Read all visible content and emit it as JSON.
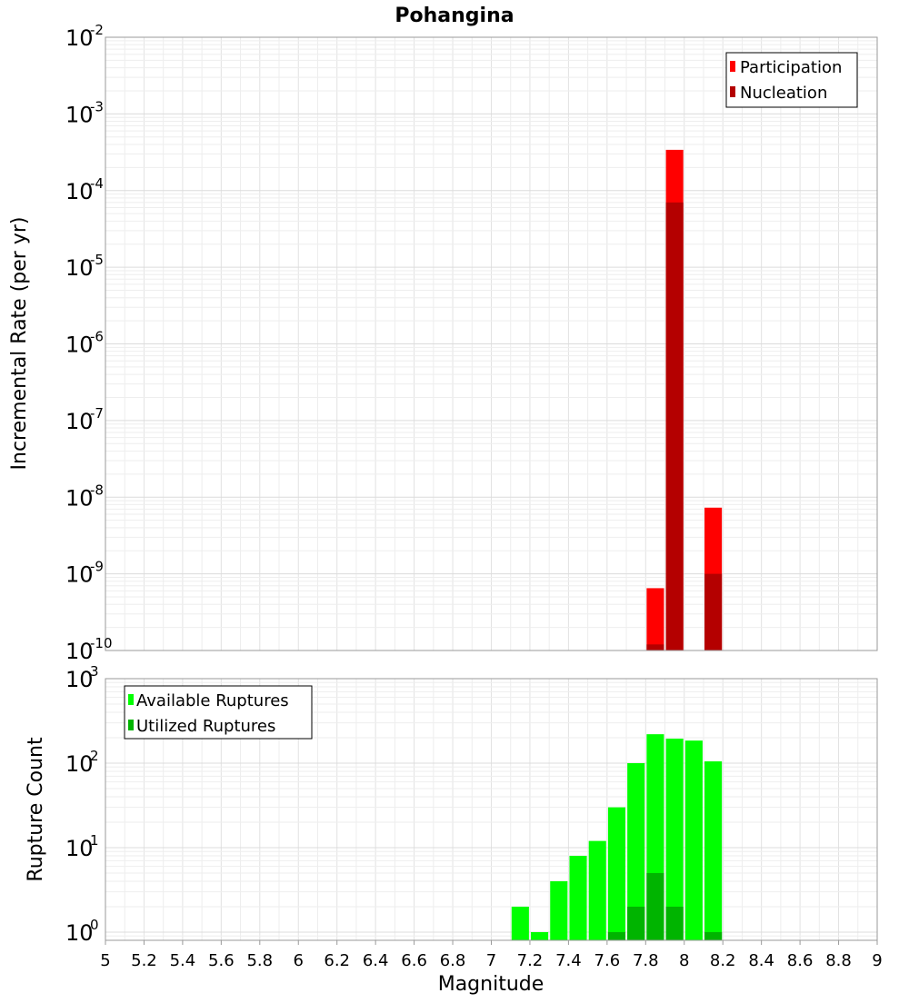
{
  "chart_data": [
    {
      "type": "bar",
      "title": "Pohangina",
      "xlabel": "",
      "ylabel": "Incremental Rate (per yr)",
      "y_scale": "log",
      "ylim": [
        1e-10,
        0.01
      ],
      "xlim": [
        5,
        9
      ],
      "y_tick_exponents": [
        "-10",
        "-9",
        "-8",
        "-7",
        "-6",
        "-5",
        "-4",
        "-3",
        "-2"
      ],
      "y_tick_base": "10",
      "legend": {
        "position": "top-right",
        "entries": [
          "Participation",
          "Nucleation"
        ]
      },
      "grid": true,
      "bar_width": 0.09,
      "series": [
        {
          "name": "Participation",
          "color": "#ff0000",
          "x": [
            7.85,
            7.95,
            8.15
          ],
          "values": [
            6.5e-10,
            0.00034,
            7.3e-09
          ]
        },
        {
          "name": "Nucleation",
          "color": "#b40000",
          "x": [
            7.85,
            7.95,
            8.15
          ],
          "values": [
            1.2e-10,
            7e-05,
            1e-09
          ]
        }
      ]
    },
    {
      "type": "bar",
      "title": "",
      "xlabel": "Magnitude",
      "ylabel": "Rupture Count",
      "y_scale": "log",
      "ylim": [
        0.8,
        1000
      ],
      "xlim": [
        5,
        9
      ],
      "x_ticks": [
        "5",
        "5.2",
        "5.4",
        "5.6",
        "5.8",
        "6",
        "6.2",
        "6.4",
        "6.6",
        "6.8",
        "7",
        "7.2",
        "7.4",
        "7.6",
        "7.8",
        "8",
        "8.2",
        "8.4",
        "8.6",
        "8.8",
        "9"
      ],
      "y_tick_exponents": [
        "0",
        "1",
        "2",
        "3"
      ],
      "y_tick_base": "10",
      "legend": {
        "position": "top-left",
        "entries": [
          "Available Ruptures",
          "Utilized Ruptures"
        ]
      },
      "grid": true,
      "bar_width": 0.09,
      "series": [
        {
          "name": "Available Ruptures",
          "color": "#00ff00",
          "x": [
            7.15,
            7.25,
            7.35,
            7.45,
            7.55,
            7.65,
            7.75,
            7.85,
            7.95,
            8.05,
            8.15
          ],
          "values": [
            2,
            1,
            4,
            8,
            12,
            30,
            100,
            220,
            195,
            185,
            105
          ]
        },
        {
          "name": "Utilized Ruptures",
          "color": "#00b400",
          "x": [
            7.65,
            7.75,
            7.85,
            7.95,
            8.15
          ],
          "values": [
            1,
            2,
            5,
            2,
            1
          ]
        }
      ]
    }
  ]
}
